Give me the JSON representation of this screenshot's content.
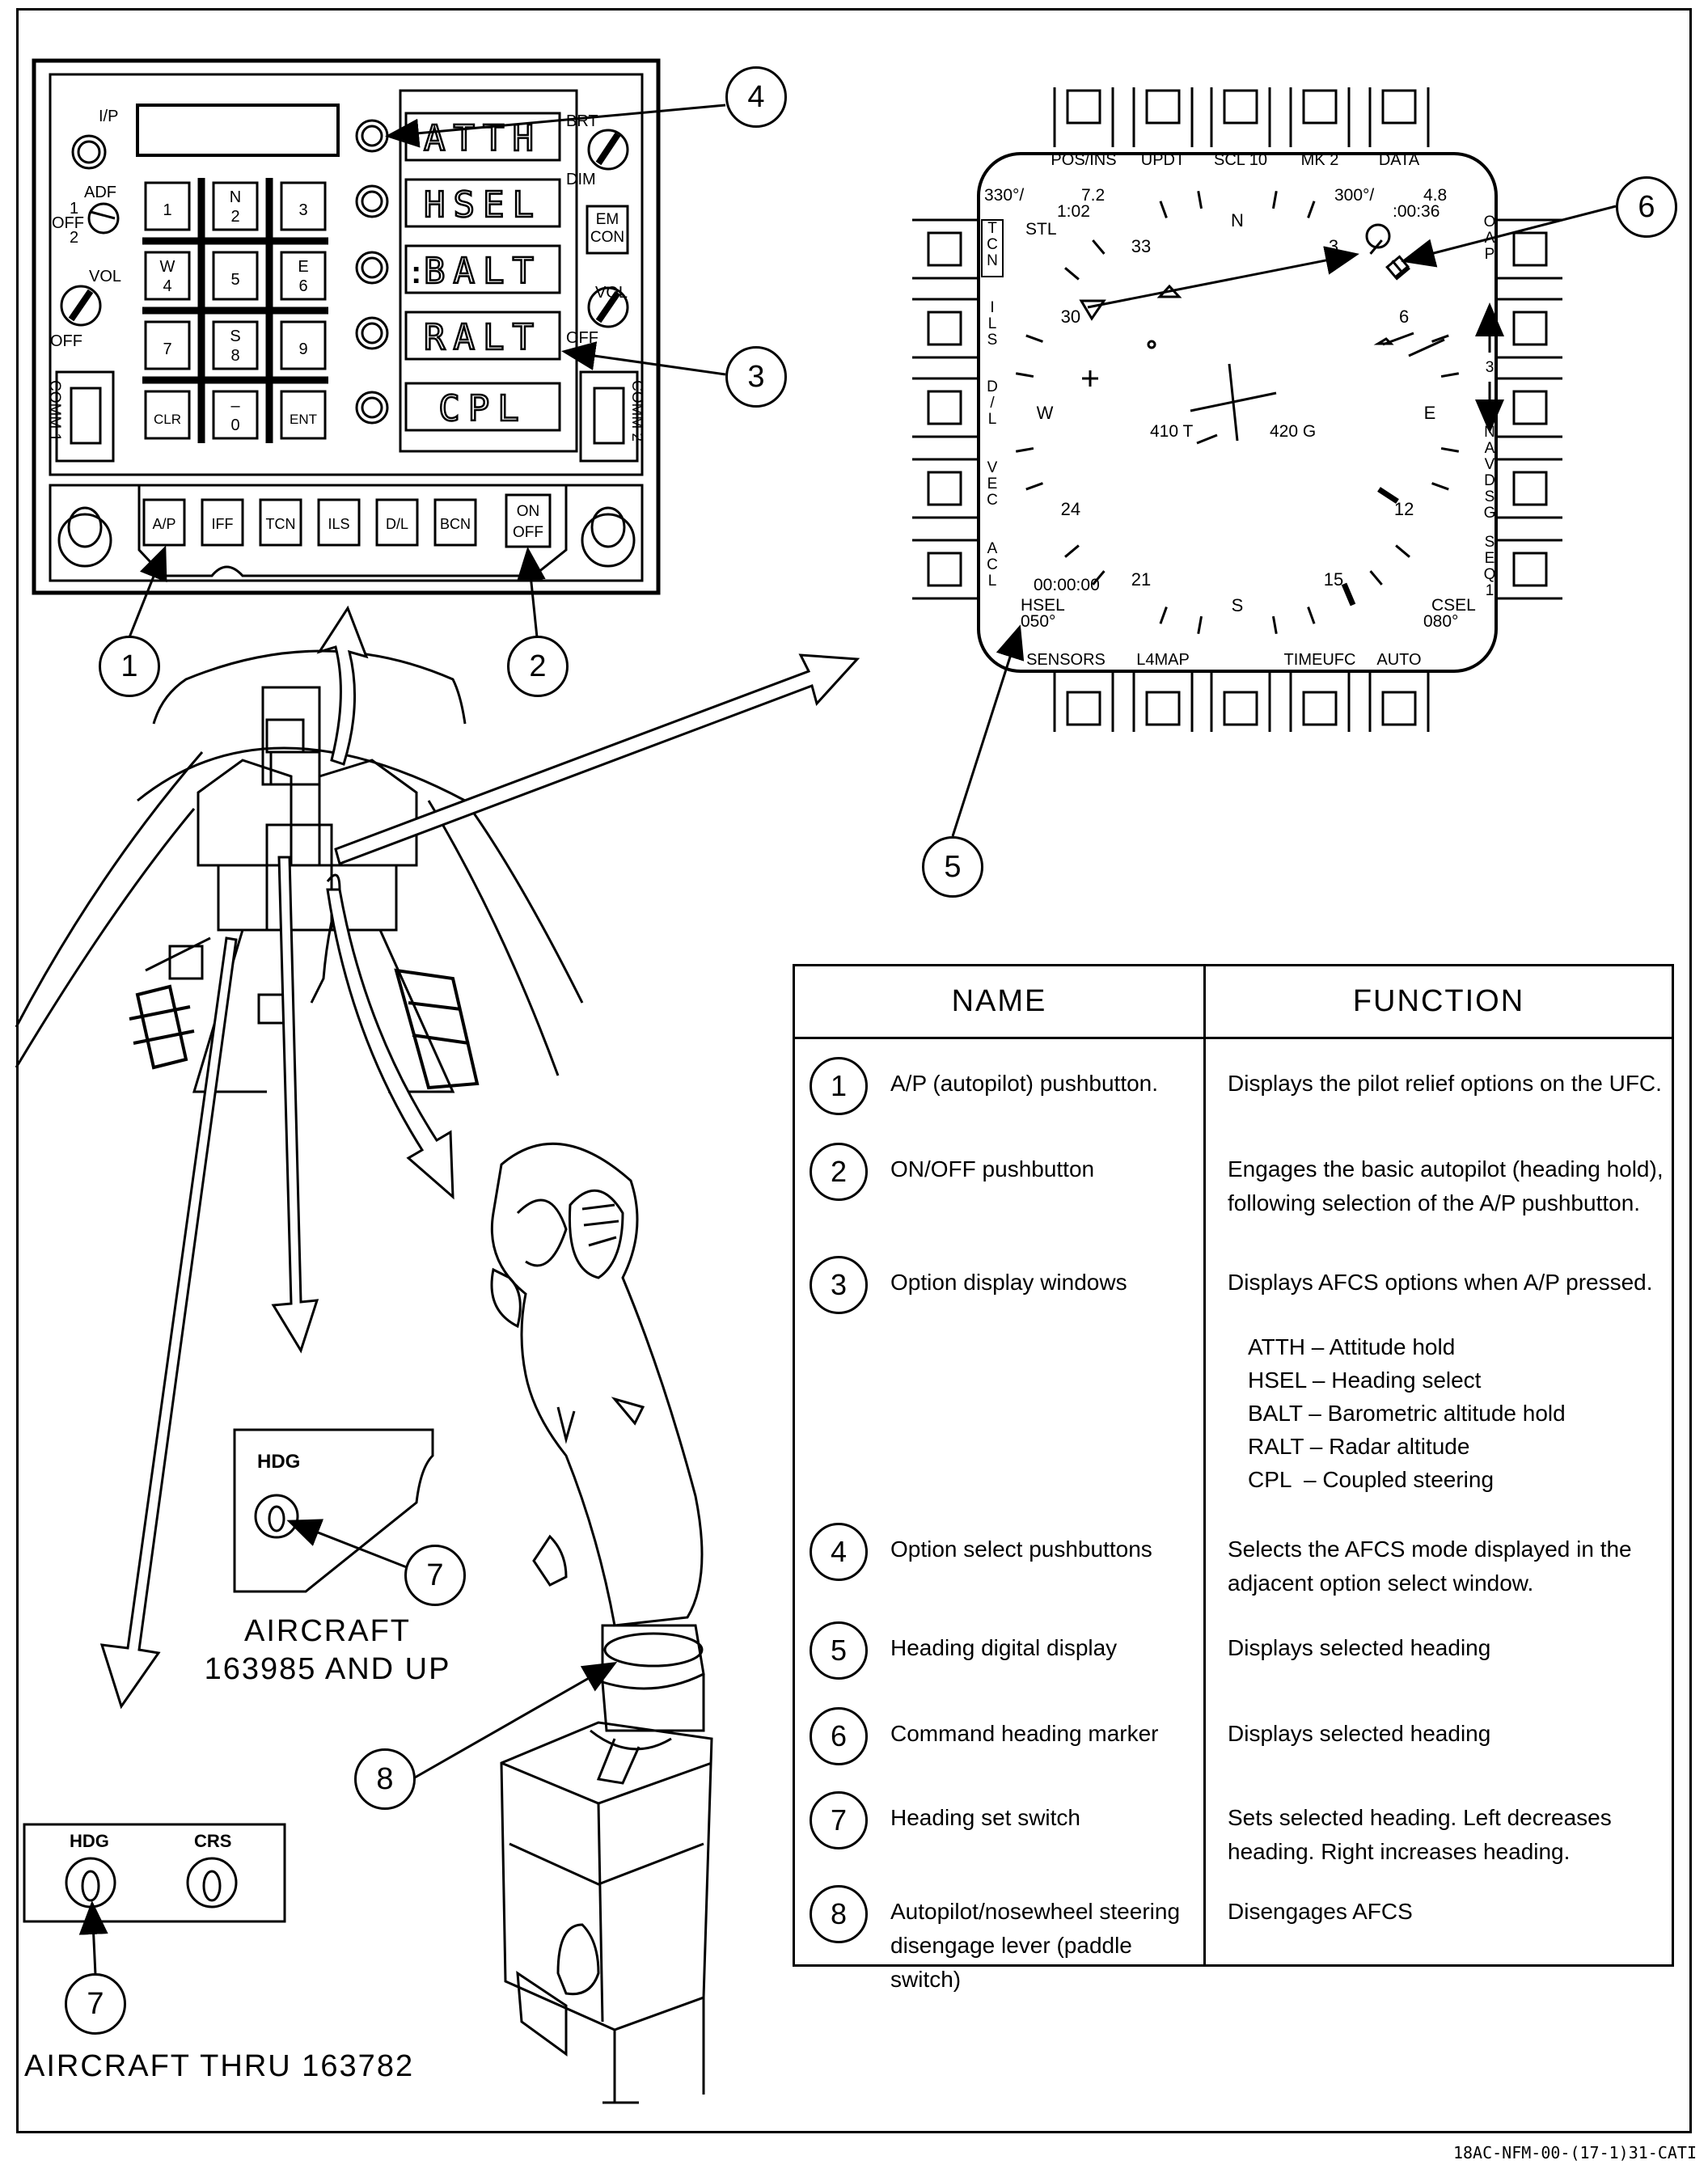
{
  "ufc": {
    "io_label": "I/P",
    "adf_label": "ADF",
    "adf_pos1": "1",
    "adf_off": "OFF",
    "adf_pos2": "2",
    "vol_label": "VOL",
    "vol_off": "OFF",
    "comm1_label": "COMM 1",
    "comm2_label": "COMM 2",
    "brt_label": "BRT",
    "dim_label": "DIM",
    "emcon_label": "EM CON",
    "vol2_label": "VOL",
    "vol2_off": "OFF",
    "keys": [
      {
        "top": "",
        "bottom": "1"
      },
      {
        "top": "N",
        "bottom": "2"
      },
      {
        "top": "",
        "bottom": "3"
      },
      {
        "top": "W",
        "bottom": "4"
      },
      {
        "top": "",
        "bottom": "5"
      },
      {
        "top": "E",
        "bottom": "6"
      },
      {
        "top": "",
        "bottom": "7"
      },
      {
        "top": "S",
        "bottom": "8"
      },
      {
        "top": "",
        "bottom": "9"
      },
      {
        "top": "",
        "bottom": "CLR"
      },
      {
        "top": "–",
        "bottom": "0"
      },
      {
        "top": "",
        "bottom": "ENT"
      }
    ],
    "option_windows": [
      "ATTH",
      "HSEL",
      "BALT",
      "RALT",
      "CPL"
    ],
    "balt_cue": ":",
    "function_buttons": [
      "A/P",
      "IFF",
      "TCN",
      "ILS",
      "D/L",
      "BCN"
    ],
    "onoff_top": "ON",
    "onoff_bottom": "OFF"
  },
  "hsi": {
    "top_buttons": [
      "POS/INS",
      "UPDT",
      "SCL 10",
      "MK 2",
      "DATA"
    ],
    "bottom_buttons": [
      "SENSORS",
      "L4MAP",
      "",
      "TIMEUFC",
      "AUTO"
    ],
    "left_labels": [
      "TCN",
      "ILS",
      "D/L",
      "VEC",
      "ACL"
    ],
    "right_labels": [
      "OAP",
      "3",
      "NAVDSG",
      "SEQ1"
    ],
    "top_left_brg": "330°/",
    "top_left_dist": "7.2",
    "top_left_time": "1:02",
    "top_left_id": "STL",
    "top_right_brg": "300°/",
    "top_right_dist": "4.8",
    "top_right_time": ":00:36",
    "compass_marks": [
      "N",
      "3",
      "6",
      "E",
      "12",
      "15",
      "S",
      "21",
      "24",
      "W",
      "30",
      "33"
    ],
    "tas": "410 T",
    "gs": "420 G",
    "elapsed": "00:00:00",
    "hsel_label": "HSEL",
    "hsel_value": "050°",
    "csel_label": "CSEL",
    "csel_value": "080°"
  },
  "panel_hdg_new": {
    "label": "HDG"
  },
  "panel_old": {
    "hdg": "HDG",
    "crs": "CRS"
  },
  "captions": {
    "new_line1": "AIRCRAFT",
    "new_line2": "163985 AND UP",
    "old": "AIRCRAFT THRU 163782"
  },
  "callouts": [
    "1",
    "2",
    "3",
    "4",
    "5",
    "6",
    "7",
    "7",
    "8"
  ],
  "table": {
    "col_name": "NAME",
    "col_function": "FUNCTION",
    "rows": [
      {
        "num": "1",
        "name": "A/P (autopilot) pushbutton.",
        "function": "Displays the pilot relief options on the UFC."
      },
      {
        "num": "2",
        "name": "ON/OFF pushbutton",
        "function": "Engages the basic autopilot (heading hold), following selection of the A/P pushbutton."
      },
      {
        "num": "3",
        "name": "Option display windows",
        "function": "Displays AFCS options when A/P pressed.",
        "options": [
          "ATTH – Attitude hold",
          "HSEL – Heading select",
          "BALT – Barometric altitude hold",
          "RALT – Radar altitude",
          "CPL  – Coupled steering"
        ]
      },
      {
        "num": "4",
        "name": "Option select pushbuttons",
        "function": "Selects the AFCS mode displayed in the adjacent option select window."
      },
      {
        "num": "5",
        "name": "Heading digital display",
        "function": "Displays selected heading"
      },
      {
        "num": "6",
        "name": "Command heading marker",
        "function": "Displays selected heading"
      },
      {
        "num": "7",
        "name": "Heading set switch",
        "function": "Sets selected heading. Left decreases heading. Right increases heading."
      },
      {
        "num": "8",
        "name": "Autopilot/nosewheel steering disengage lever (paddle switch)",
        "function": "Disengages AFCS"
      }
    ]
  },
  "doc_id": "18AC-NFM-00-(17-1)31-CATI"
}
